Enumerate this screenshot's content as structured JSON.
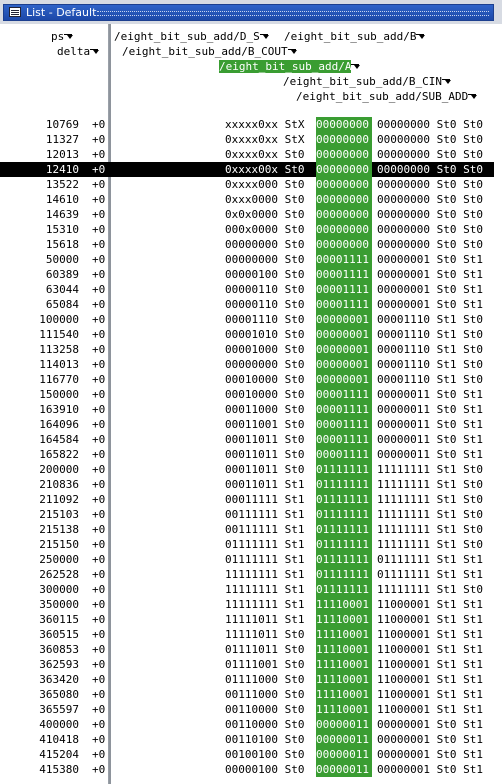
{
  "window": {
    "title": "List - Default"
  },
  "headers": {
    "ps": "ps",
    "delta": "delta",
    "signals": [
      "/eight_bit_sub_add/D_S",
      "/eight_bit_sub_add/B",
      "/eight_bit_sub_add/B_COUT",
      "/eight_bit_sub_add/A",
      "/eight_bit_sub_add/B_CIN",
      "/eight_bit_sub_add/SUB_ADD"
    ],
    "selected_signal_index": 3
  },
  "rows": [
    {
      "ps": "10769",
      "delta": "+0",
      "v1": "xxxxx0xx StX",
      "a": "00000000",
      "v2": "00000000 St0 St0"
    },
    {
      "ps": "11327",
      "delta": "+0",
      "v1": "0xxxx0xx StX",
      "a": "00000000",
      "v2": "00000000 St0 St0"
    },
    {
      "ps": "12013",
      "delta": "+0",
      "v1": "0xxxx0xx St0",
      "a": "00000000",
      "v2": "00000000 St0 St0"
    },
    {
      "ps": "12410",
      "delta": "+0",
      "v1": "0xxxx00x St0",
      "a": "00000000",
      "v2": "00000000 St0 St0",
      "selected": true
    },
    {
      "ps": "13522",
      "delta": "+0",
      "v1": "0xxxx000 St0",
      "a": "00000000",
      "v2": "00000000 St0 St0"
    },
    {
      "ps": "14610",
      "delta": "+0",
      "v1": "0xxx0000 St0",
      "a": "00000000",
      "v2": "00000000 St0 St0"
    },
    {
      "ps": "14639",
      "delta": "+0",
      "v1": "0x0x0000 St0",
      "a": "00000000",
      "v2": "00000000 St0 St0"
    },
    {
      "ps": "15310",
      "delta": "+0",
      "v1": "000x0000 St0",
      "a": "00000000",
      "v2": "00000000 St0 St0"
    },
    {
      "ps": "15618",
      "delta": "+0",
      "v1": "00000000 St0",
      "a": "00000000",
      "v2": "00000000 St0 St0"
    },
    {
      "ps": "50000",
      "delta": "+0",
      "v1": "00000000 St0",
      "a": "00001111",
      "v2": "00000001 St0 St1"
    },
    {
      "ps": "60389",
      "delta": "+0",
      "v1": "00000100 St0",
      "a": "00001111",
      "v2": "00000001 St0 St1"
    },
    {
      "ps": "63044",
      "delta": "+0",
      "v1": "00000110 St0",
      "a": "00001111",
      "v2": "00000001 St0 St1"
    },
    {
      "ps": "65084",
      "delta": "+0",
      "v1": "00000110 St0",
      "a": "00001111",
      "v2": "00000001 St0 St1"
    },
    {
      "ps": "100000",
      "delta": "+0",
      "v1": "00001110 St0",
      "a": "00000001",
      "v2": "00001110 St1 St0"
    },
    {
      "ps": "111540",
      "delta": "+0",
      "v1": "00001010 St0",
      "a": "00000001",
      "v2": "00001110 St1 St0"
    },
    {
      "ps": "113258",
      "delta": "+0",
      "v1": "00001000 St0",
      "a": "00000001",
      "v2": "00001110 St1 St0"
    },
    {
      "ps": "114013",
      "delta": "+0",
      "v1": "00000000 St0",
      "a": "00000001",
      "v2": "00001110 St1 St0"
    },
    {
      "ps": "116770",
      "delta": "+0",
      "v1": "00010000 St0",
      "a": "00000001",
      "v2": "00001110 St1 St0"
    },
    {
      "ps": "150000",
      "delta": "+0",
      "v1": "00010000 St0",
      "a": "00001111",
      "v2": "00000011 St0 St1"
    },
    {
      "ps": "163910",
      "delta": "+0",
      "v1": "00011000 St0",
      "a": "00001111",
      "v2": "00000011 St0 St1"
    },
    {
      "ps": "164096",
      "delta": "+0",
      "v1": "00011001 St0",
      "a": "00001111",
      "v2": "00000011 St0 St1"
    },
    {
      "ps": "164584",
      "delta": "+0",
      "v1": "00011011 St0",
      "a": "00001111",
      "v2": "00000011 St0 St1"
    },
    {
      "ps": "165822",
      "delta": "+0",
      "v1": "00011011 St0",
      "a": "00001111",
      "v2": "00000011 St0 St1"
    },
    {
      "ps": "200000",
      "delta": "+0",
      "v1": "00011011 St0",
      "a": "01111111",
      "v2": "11111111 St1 St0"
    },
    {
      "ps": "210836",
      "delta": "+0",
      "v1": "00011011 St1",
      "a": "01111111",
      "v2": "11111111 St1 St0"
    },
    {
      "ps": "211092",
      "delta": "+0",
      "v1": "00011111 St1",
      "a": "01111111",
      "v2": "11111111 St1 St0"
    },
    {
      "ps": "215103",
      "delta": "+0",
      "v1": "00111111 St1",
      "a": "01111111",
      "v2": "11111111 St1 St0"
    },
    {
      "ps": "215138",
      "delta": "+0",
      "v1": "00111111 St1",
      "a": "01111111",
      "v2": "11111111 St1 St0"
    },
    {
      "ps": "215150",
      "delta": "+0",
      "v1": "01111111 St1",
      "a": "01111111",
      "v2": "11111111 St1 St0"
    },
    {
      "ps": "250000",
      "delta": "+0",
      "v1": "01111111 St1",
      "a": "01111111",
      "v2": "01111111 St1 St1"
    },
    {
      "ps": "262528",
      "delta": "+0",
      "v1": "11111111 St1",
      "a": "01111111",
      "v2": "01111111 St1 St1"
    },
    {
      "ps": "300000",
      "delta": "+0",
      "v1": "11111111 St1",
      "a": "01111111",
      "v2": "11111111 St1 St0"
    },
    {
      "ps": "350000",
      "delta": "+0",
      "v1": "11111111 St1",
      "a": "11110001",
      "v2": "11000001 St1 St1"
    },
    {
      "ps": "360115",
      "delta": "+0",
      "v1": "11111011 St1",
      "a": "11110001",
      "v2": "11000001 St1 St1"
    },
    {
      "ps": "360515",
      "delta": "+0",
      "v1": "11111011 St0",
      "a": "11110001",
      "v2": "11000001 St1 St1"
    },
    {
      "ps": "360853",
      "delta": "+0",
      "v1": "01111011 St0",
      "a": "11110001",
      "v2": "11000001 St1 St1"
    },
    {
      "ps": "362593",
      "delta": "+0",
      "v1": "01111001 St0",
      "a": "11110001",
      "v2": "11000001 St1 St1"
    },
    {
      "ps": "363420",
      "delta": "+0",
      "v1": "01111000 St0",
      "a": "11110001",
      "v2": "11000001 St1 St1"
    },
    {
      "ps": "365080",
      "delta": "+0",
      "v1": "00111000 St0",
      "a": "11110001",
      "v2": "11000001 St1 St1"
    },
    {
      "ps": "365597",
      "delta": "+0",
      "v1": "00110000 St0",
      "a": "11110001",
      "v2": "11000001 St1 St1"
    },
    {
      "ps": "400000",
      "delta": "+0",
      "v1": "00110000 St0",
      "a": "00000011",
      "v2": "00000001 St0 St1"
    },
    {
      "ps": "410418",
      "delta": "+0",
      "v1": "00110100 St0",
      "a": "00000011",
      "v2": "00000001 St0 St1"
    },
    {
      "ps": "415204",
      "delta": "+0",
      "v1": "00100100 St0",
      "a": "00000011",
      "v2": "00000001 St0 St1"
    },
    {
      "ps": "415380",
      "delta": "+0",
      "v1": "00000100 St0",
      "a": "00000011",
      "v2": "00000001 St0 St1"
    }
  ],
  "colors": {
    "highlight": "#3a9d32",
    "titlebar": "#2f63c8",
    "selected_row": "#000000"
  }
}
